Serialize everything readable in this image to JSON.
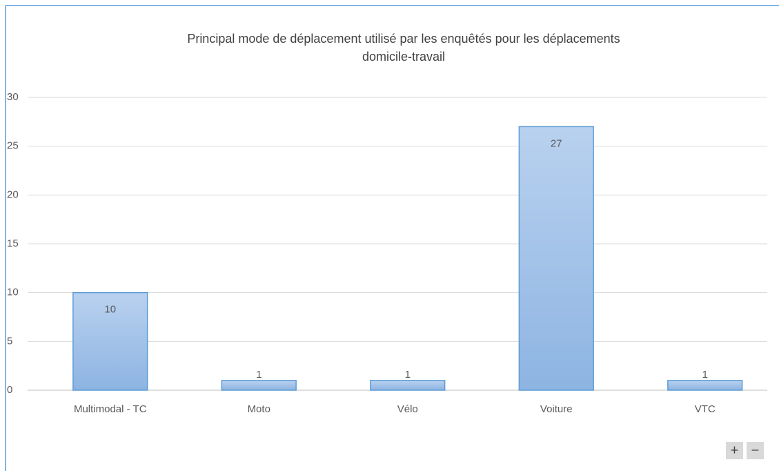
{
  "chart_data": {
    "type": "bar",
    "title": [
      "Principal mode de déplacement utilisé par les enquêtés pour les déplacements",
      "domicile-travail"
    ],
    "categories": [
      "Multimodal - TC",
      "Moto",
      "Vélo",
      "Voiture",
      "VTC"
    ],
    "values": [
      10,
      1,
      1,
      27,
      1
    ],
    "color": "#8db4e2",
    "ylim": [
      0,
      30
    ],
    "yticks": [
      0,
      5,
      10,
      15,
      20,
      25,
      30
    ],
    "grid": true
  },
  "zoom_controls": {
    "zoom_in": "+",
    "zoom_out": "−"
  }
}
